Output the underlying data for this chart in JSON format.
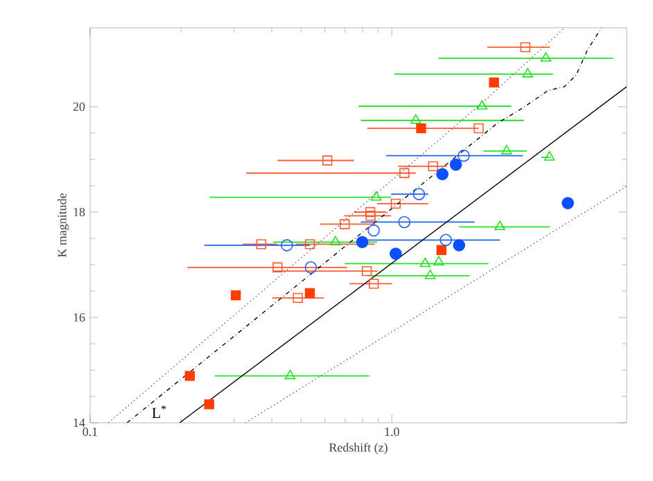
{
  "chart_data": {
    "type": "scatter",
    "xlabel": "Redshift (z)",
    "ylabel": "K magnitude",
    "log": "x",
    "xlim": [
      0.1,
      6
    ],
    "ylim": [
      14,
      21.5
    ],
    "xticks": [
      {
        "value": 0.1,
        "label": "0.1"
      },
      {
        "value": 1,
        "label": "1.0"
      }
    ],
    "yticks": [
      14,
      16,
      18,
      20
    ],
    "annotations": [
      "L$^{*}$"
    ],
    "series": [
      {
        "marker": "square",
        "color": "#ff3c00",
        "x": [
          0.214,
          0.248,
          0.304,
          0.535,
          1.46,
          1.25,
          2.18
        ],
        "values": [
          14.89,
          14.35,
          16.42,
          16.46,
          17.28,
          19.59,
          20.46
        ]
      },
      {
        "marker": "square",
        "color": "#ff5a30",
        "x": [
          2.77,
          1.94,
          0.611,
          1.37,
          1.1,
          1.03,
          0.848,
          0.85,
          0.698,
          0.369,
          0.535,
          0.418,
          0.826,
          0.488,
          0.871
        ],
        "values": [
          21.13,
          19.59,
          18.98,
          18.87,
          18.74,
          18.16,
          18.0,
          17.93,
          17.77,
          17.39,
          17.39,
          16.95,
          16.88,
          16.37,
          16.64
        ],
        "xerrors": [
          [
            2.07,
            3.34
          ],
          [
            0.83,
            1.94
          ],
          [
            0.418,
            0.749
          ],
          [
            1.05,
            1.52
          ],
          [
            0.329,
            1.2
          ],
          [
            0.894,
            1.32
          ],
          [
            0.749,
            0.958
          ],
          [
            0.695,
            0.994
          ],
          [
            0.579,
            0.878
          ],
          [
            0.321,
            0.418
          ],
          [
            0.481,
            0.878
          ],
          [
            0.21,
            0.71
          ],
          [
            0.404,
            0.897
          ],
          [
            0.401,
            0.595
          ],
          [
            0.723,
            1.0
          ]
        ]
      },
      {
        "marker": "circle",
        "color": "#2060ff",
        "x": [
          1.73,
          1.23,
          1.1,
          0.871,
          0.449,
          0.539,
          1.51
        ],
        "values": [
          19.07,
          18.34,
          17.81,
          17.65,
          17.37,
          16.95,
          17.47
        ],
        "xerrors": [
          [
            0.958,
            2.72
          ],
          [
            0.994,
            1.32
          ],
          [
            0.789,
            1.88
          ],
          null,
          [
            0.239,
            0.535
          ],
          null,
          [
            0.832,
            2.28
          ]
        ]
      },
      {
        "marker": "circle",
        "color": "#0a50ff",
        "x": [
          1.63,
          1.47,
          3.83,
          0.798,
          1.03,
          1.67
        ],
        "values": [
          18.9,
          18.72,
          18.17,
          17.43,
          17.21,
          17.37
        ]
      },
      {
        "marker": "triangle",
        "color": "#22e022",
        "x": [
          3.24,
          2.82,
          1.99,
          1.2,
          2.4,
          3.33,
          0.887,
          2.28,
          0.65,
          1.29,
          1.43,
          1.34,
          0.46
        ],
        "values": [
          20.92,
          20.62,
          20.01,
          19.74,
          19.16,
          19.04,
          18.28,
          17.72,
          17.43,
          17.02,
          17.05,
          16.79,
          14.89
        ],
        "xerrors": [
          [
            1.43,
            5.41
          ],
          [
            1.02,
            3.42
          ],
          [
            0.776,
            2.49
          ],
          [
            0.789,
            2.74
          ],
          [
            2.01,
            2.8
          ],
          [
            3.13,
            3.36
          ],
          [
            0.249,
            0.994
          ],
          [
            1.67,
            3.34
          ],
          [
            0.404,
            0.894
          ],
          [
            0.698,
            2.09
          ],
          null,
          [
            0.832,
            1.81
          ],
          [
            0.259,
            0.841
          ]
        ]
      },
      {
        "type": "line",
        "line_style": "solid",
        "color": "#000000",
        "x": [
          0.198,
          6
        ],
        "values": [
          14,
          20.38
        ]
      },
      {
        "type": "line",
        "line_style": "dotted",
        "color": "#555555",
        "x": [
          0.327,
          3.36,
          6
        ],
        "values": [
          14,
          17.6,
          18.49
        ]
      },
      {
        "type": "line",
        "line_style": "dotted",
        "color": "#555555",
        "x": [
          0.115,
          1.99,
          3.74
        ],
        "values": [
          14,
          20.07,
          21.5
        ]
      },
      {
        "type": "line",
        "line_style": "dashed",
        "color": "#000000",
        "x": [
          0.1326,
          2.24,
          2.72,
          3.3,
          3.73,
          4.08,
          4.45,
          4.95
        ],
        "values": [
          14,
          19.69,
          19.98,
          20.31,
          20.38,
          20.6,
          21.08,
          21.5
        ]
      }
    ]
  }
}
